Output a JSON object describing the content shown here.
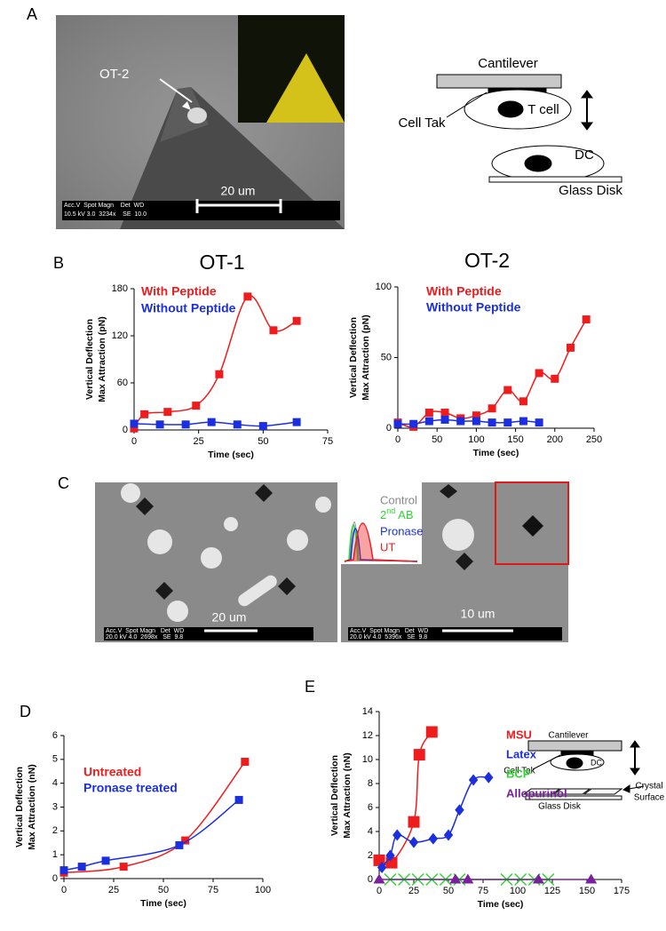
{
  "panel_labels": [
    "A",
    "B",
    "C",
    "D",
    "E"
  ],
  "panel_a": {
    "cell_label": "OT-2",
    "scale_bar": "20 um",
    "info_header": "Acc.V  Spot Magn    Det  WD",
    "info_values": "10.5 kV 3.0  3234x    SE  10.0",
    "diagram": {
      "cantilever": "Cantilever",
      "cell_tak": "Cell Tak",
      "t_cell": "T cell",
      "dc": "DC",
      "glass_disk": "Glass Disk"
    }
  },
  "panel_c": {
    "left_scale_bar": "20 um",
    "left_info_header": "Acc.V  Spot Magn   Det  WD",
    "left_info_values": "20.0 kV 4.0  2698x   SE  9.8",
    "right_scale_bar": "10 um",
    "right_info_header": "Acc.V  Spot Magn   Det  WD",
    "right_info_values": "20.0 kV 4.0  5396x   SE  9.8",
    "histogram_legend": {
      "control": "Control",
      "second_ab": {
        "base": "2",
        "sup": "nd",
        "rest": " AB"
      },
      "pronase": "Pronase",
      "ut": "UT"
    }
  },
  "panel_e_diagram": {
    "cantilever": "Cantilever",
    "cell_tak": "Cell Tak",
    "dc": "DC",
    "crystal_surface": [
      "Crystal",
      "Surface"
    ],
    "glass_disk": "Glass Disk"
  },
  "chart_data": [
    {
      "type": "line",
      "title": "OT-1",
      "ylabel": [
        "Vertical Deflection",
        "Max Attraction (pN)"
      ],
      "xlabel": "Time (sec)",
      "xlim": [
        0,
        75
      ],
      "xticks": [
        0,
        25,
        50,
        75
      ],
      "ylim": [
        0,
        180
      ],
      "yticks": [
        0,
        60,
        120,
        180
      ],
      "legend": "upper left",
      "smooth": true,
      "series": [
        {
          "name": "With Peptide",
          "color": "#ee1c1c",
          "marker": "square",
          "x": [
            0,
            4,
            13,
            24,
            33,
            44,
            54,
            63
          ],
          "values": [
            2,
            20,
            23,
            31,
            71,
            170,
            127,
            139
          ]
        },
        {
          "name": "Without Peptide",
          "color": "#1c2fe0",
          "marker": "square",
          "x": [
            0,
            10,
            20,
            30,
            40,
            50,
            63
          ],
          "values": [
            8,
            7,
            7,
            10,
            7,
            5,
            10
          ]
        }
      ]
    },
    {
      "type": "line",
      "title": "OT-2",
      "ylabel": [
        "Vertical Deflection",
        "Max Attraction (pN)"
      ],
      "xlabel": "Time (sec)",
      "xlim": [
        0,
        250
      ],
      "xticks": [
        0,
        50,
        100,
        150,
        200,
        250
      ],
      "ylim": [
        0,
        100
      ],
      "yticks": [
        0,
        50,
        100
      ],
      "legend": "upper left",
      "smooth": true,
      "series": [
        {
          "name": "With Peptide",
          "color": "#ee1c1c",
          "marker": "square",
          "x": [
            0,
            20,
            40,
            60,
            80,
            100,
            120,
            140,
            160,
            180,
            200,
            220,
            240
          ],
          "values": [
            4,
            1,
            11,
            11,
            7,
            9,
            14,
            27,
            19,
            39,
            35,
            57,
            77
          ]
        },
        {
          "name": "Without Peptide",
          "color": "#1c2fe0",
          "marker": "square",
          "x": [
            0,
            20,
            40,
            60,
            80,
            100,
            120,
            140,
            160,
            180
          ],
          "values": [
            3,
            3,
            5,
            6,
            5,
            5,
            4,
            4,
            5,
            4
          ]
        }
      ]
    },
    {
      "type": "line",
      "ylabel": [
        "Vertical Deflection",
        "Max Attraction (nN)"
      ],
      "xlabel": "Time (sec)",
      "xlim": [
        0,
        100
      ],
      "xticks": [
        0,
        25,
        50,
        75,
        100
      ],
      "ylim": [
        0,
        6
      ],
      "yticks": [
        0,
        1,
        2,
        3,
        4,
        5,
        6
      ],
      "legend": "upper left",
      "smooth": true,
      "series": [
        {
          "name": "Untreated",
          "color": "#ee1c1c",
          "marker": "square",
          "x": [
            0,
            30,
            61,
            91
          ],
          "values": [
            0.25,
            0.5,
            1.6,
            4.9
          ]
        },
        {
          "name": "Pronase treated",
          "color": "#1c2fe0",
          "marker": "square",
          "x": [
            0,
            9,
            21,
            58,
            88
          ],
          "values": [
            0.35,
            0.5,
            0.75,
            1.4,
            3.3
          ]
        }
      ]
    },
    {
      "type": "line",
      "ylabel": [
        "Vertical Deflection",
        "Max Attraction (nN)"
      ],
      "xlabel": "Time (sec)",
      "xlim": [
        0,
        175
      ],
      "xticks": [
        0,
        25,
        50,
        75,
        100,
        125,
        150,
        175
      ],
      "ylim": [
        0,
        14
      ],
      "yticks": [
        0,
        2,
        4,
        6,
        8,
        10,
        12,
        14
      ],
      "legend": "upper right",
      "smooth": true,
      "series": [
        {
          "name": "MSU",
          "color": "#ee1c1c",
          "marker": "square",
          "x": [
            0,
            9,
            25,
            29,
            38
          ],
          "values": [
            1.6,
            1.4,
            4.8,
            10.4,
            12.3
          ]
        },
        {
          "name": "Latex",
          "color": "#1c2fe0",
          "marker": "diamond",
          "x": [
            2,
            8,
            13,
            25,
            39,
            50,
            58,
            68,
            79
          ],
          "values": [
            1,
            2,
            3.7,
            3.1,
            3.4,
            3.7,
            5.8,
            8.3,
            8.5
          ]
        },
        {
          "name": "BCP",
          "color": "#2fd52f",
          "marker": "x",
          "x": [
            8,
            18,
            28,
            38,
            48,
            58,
            92,
            102,
            112,
            122
          ],
          "values": [
            0,
            0,
            0,
            0,
            0,
            0,
            0,
            0,
            0,
            0
          ]
        },
        {
          "name": "Allopurinol",
          "color": "#7a1f9e",
          "marker": "triangle",
          "x": [
            0,
            55,
            64,
            115,
            153
          ],
          "values": [
            0,
            0,
            0,
            0,
            0
          ]
        }
      ]
    }
  ]
}
